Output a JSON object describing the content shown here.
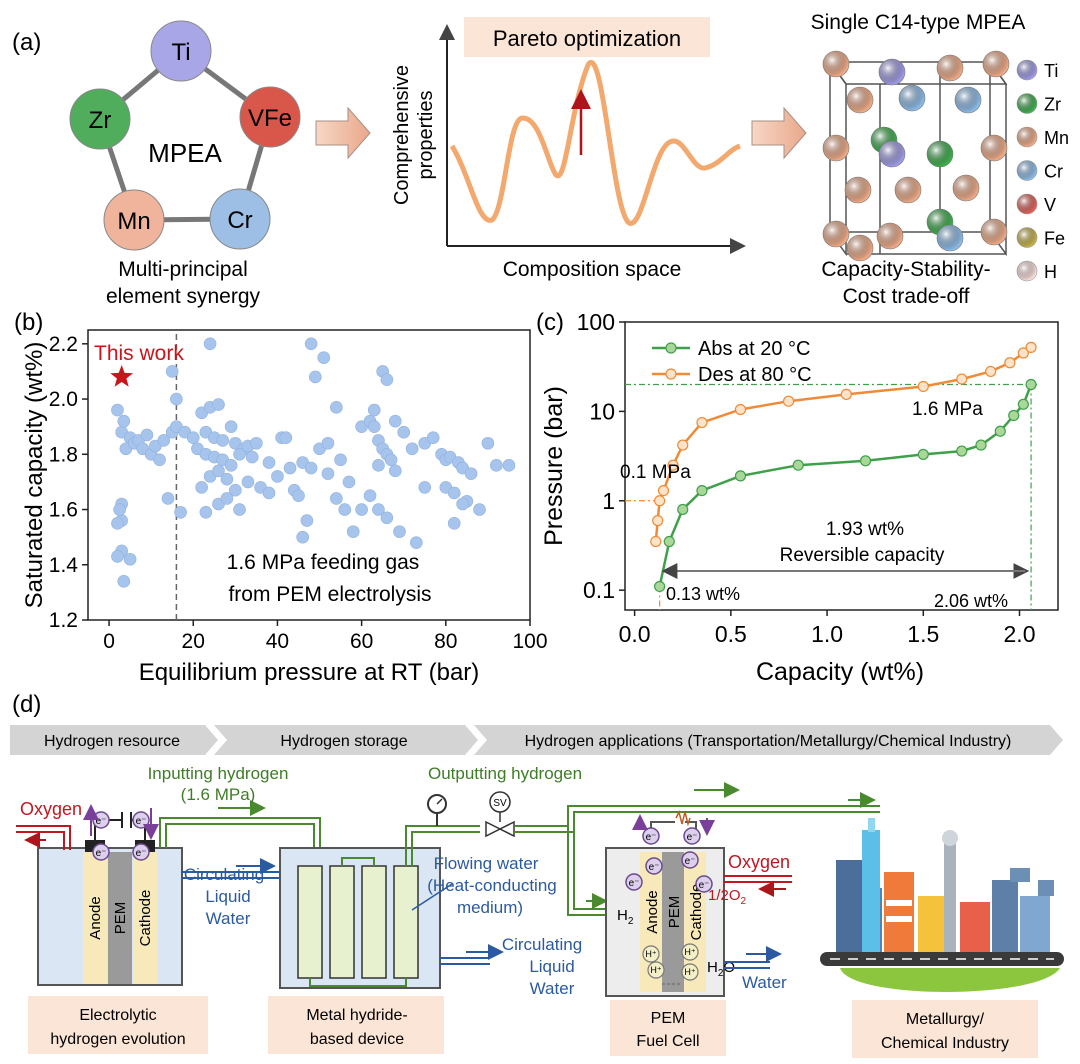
{
  "panel_a": {
    "label": "(a)",
    "ring_center": "MPEA",
    "elements": [
      {
        "symbol": "Ti",
        "color": "#a9a6e8"
      },
      {
        "symbol": "VFe",
        "color": "#d9574a"
      },
      {
        "symbol": "Cr",
        "color": "#9dbfe6"
      },
      {
        "symbol": "Mn",
        "color": "#efb49b"
      },
      {
        "symbol": "Zr",
        "color": "#4fad5b"
      }
    ],
    "ring_caption_1": "Multi-principal",
    "ring_caption_2": "element synergy",
    "pareto_title": "Pareto optimization",
    "pareto_ylabel_1": "Comprehensive",
    "pareto_ylabel_2": "properties",
    "pareto_xlabel": "Composition space",
    "crystal_title": "Single C14-type MPEA",
    "crystal_caption_1": "Capacity-Stability-",
    "crystal_caption_2": "Cost trade-off",
    "legend": [
      {
        "symbol": "Ti",
        "color": "#9f9be6"
      },
      {
        "symbol": "Zr",
        "color": "#3fae4e"
      },
      {
        "symbol": "Mn",
        "color": "#eeaa86"
      },
      {
        "symbol": "Cr",
        "color": "#8cbbe8"
      },
      {
        "symbol": "V",
        "color": "#e0625a"
      },
      {
        "symbol": "Fe",
        "color": "#c8b24a"
      },
      {
        "symbol": "H",
        "color": "#fbe0dc"
      }
    ]
  },
  "chart_data": [
    {
      "type": "scatter",
      "panel": "(b)",
      "xlabel": "Equilibrium pressure at RT (bar)",
      "ylabel": "Saturated capacity (wt%)",
      "xlim": [
        -5,
        100
      ],
      "ylim": [
        1.2,
        2.25
      ],
      "xticks": [
        0,
        20,
        40,
        60,
        80,
        100
      ],
      "yticks": [
        1.2,
        1.4,
        1.6,
        1.8,
        2.0,
        2.2
      ],
      "xtick_labels": [
        "0",
        "20",
        "40",
        "60",
        "80",
        "100"
      ],
      "ytick_labels": [
        "1.2",
        "1.4",
        "1.6",
        "1.8",
        "2.0",
        "2.2"
      ],
      "highlight": {
        "label": "This work",
        "x": 3,
        "y": 2.08,
        "color": "#c8151b"
      },
      "vline_x": 16,
      "annotation_1": "1.6 MPa feeding gas",
      "annotation_2": "from PEM electrolysis",
      "points": [
        [
          2,
          1.96
        ],
        [
          3,
          1.88
        ],
        [
          3.5,
          1.92
        ],
        [
          4,
          1.82
        ],
        [
          5,
          1.86
        ],
        [
          6,
          1.84
        ],
        [
          7,
          1.85
        ],
        [
          8,
          1.82
        ],
        [
          9,
          1.87
        ],
        [
          10,
          1.8
        ],
        [
          11,
          1.83
        ],
        [
          12,
          1.78
        ],
        [
          13,
          1.85
        ],
        [
          15,
          1.88
        ],
        [
          16,
          1.9
        ],
        [
          18,
          1.88
        ],
        [
          3,
          1.62
        ],
        [
          3,
          1.56
        ],
        [
          2,
          1.55
        ],
        [
          3,
          1.45
        ],
        [
          2,
          1.43
        ],
        [
          5,
          1.42
        ],
        [
          3.5,
          1.34
        ],
        [
          2.5,
          1.6
        ],
        [
          15,
          2.1
        ],
        [
          16,
          2.0
        ],
        [
          14,
          1.64
        ],
        [
          17,
          1.59
        ],
        [
          22,
          1.95
        ],
        [
          24,
          1.97
        ],
        [
          26,
          1.98
        ],
        [
          23,
          1.88
        ],
        [
          25,
          1.86
        ],
        [
          27,
          1.85
        ],
        [
          29,
          1.9
        ],
        [
          30,
          1.84
        ],
        [
          32,
          1.82
        ],
        [
          20,
          1.86
        ],
        [
          21,
          1.82
        ],
        [
          23,
          1.8
        ],
        [
          25,
          1.79
        ],
        [
          27,
          1.78
        ],
        [
          29,
          1.76
        ],
        [
          31,
          1.8
        ],
        [
          33,
          1.83
        ],
        [
          24,
          1.72
        ],
        [
          26,
          1.74
        ],
        [
          28,
          1.71
        ],
        [
          22,
          1.68
        ],
        [
          30,
          1.67
        ],
        [
          33,
          1.7
        ],
        [
          36,
          1.68
        ],
        [
          38,
          1.66
        ],
        [
          26,
          1.62
        ],
        [
          28,
          1.64
        ],
        [
          23,
          1.59
        ],
        [
          31,
          1.6
        ],
        [
          35,
          1.84
        ],
        [
          34,
          1.79
        ],
        [
          24,
          2.2
        ],
        [
          48,
          2.2
        ],
        [
          49,
          2.08
        ],
        [
          51,
          2.15
        ],
        [
          41,
          1.86
        ],
        [
          42,
          1.86
        ],
        [
          38,
          1.77
        ],
        [
          43,
          1.75
        ],
        [
          46,
          1.77
        ],
        [
          40,
          1.72
        ],
        [
          44,
          1.67
        ],
        [
          45,
          1.65
        ],
        [
          47,
          1.56
        ],
        [
          46,
          1.5
        ],
        [
          50,
          1.82
        ],
        [
          52,
          1.84
        ],
        [
          48,
          1.75
        ],
        [
          52,
          1.73
        ],
        [
          55,
          1.78
        ],
        [
          57,
          1.7
        ],
        [
          56,
          1.6
        ],
        [
          54,
          1.64
        ],
        [
          60,
          1.9
        ],
        [
          62,
          1.92
        ],
        [
          63,
          1.9
        ],
        [
          64,
          1.85
        ],
        [
          65,
          1.82
        ],
        [
          66,
          1.8
        ],
        [
          64,
          1.76
        ],
        [
          67,
          1.78
        ],
        [
          68,
          1.74
        ],
        [
          62,
          1.65
        ],
        [
          64,
          1.6
        ],
        [
          66,
          1.57
        ],
        [
          58,
          1.52
        ],
        [
          60,
          1.6
        ],
        [
          68,
          1.92
        ],
        [
          70,
          1.88
        ],
        [
          72,
          1.82
        ],
        [
          65,
          2.1
        ],
        [
          66,
          2.07
        ],
        [
          63,
          1.96
        ],
        [
          54,
          1.97
        ],
        [
          75,
          1.84
        ],
        [
          77,
          1.86
        ],
        [
          79,
          1.8
        ],
        [
          80,
          1.78
        ],
        [
          81,
          1.79
        ],
        [
          83,
          1.77
        ],
        [
          84,
          1.75
        ],
        [
          86,
          1.73
        ],
        [
          80,
          1.68
        ],
        [
          82,
          1.66
        ],
        [
          85,
          1.63
        ],
        [
          88,
          1.6
        ],
        [
          82,
          1.55
        ],
        [
          84,
          1.62
        ],
        [
          90,
          1.84
        ],
        [
          92,
          1.76
        ],
        [
          95,
          1.76
        ],
        [
          73,
          1.48
        ],
        [
          69,
          1.52
        ],
        [
          75,
          1.68
        ]
      ]
    },
    {
      "type": "line",
      "panel": "(c)",
      "xlabel": "Capacity (wt%)",
      "ylabel": "Pressure (bar)",
      "xscale": "linear",
      "yscale": "log",
      "xlim": [
        -0.05,
        2.2
      ],
      "ylim": [
        0.06,
        100
      ],
      "xticks": [
        0.0,
        0.5,
        1.0,
        1.5,
        2.0
      ],
      "xtick_labels": [
        "0.0",
        "0.5",
        "1.0",
        "1.5",
        "2.0"
      ],
      "yticks": [
        0.1,
        1,
        10,
        100
      ],
      "ytick_labels": [
        "0.1",
        "1",
        "10",
        "100"
      ],
      "series": [
        {
          "name": "Abs at 20 °C",
          "color": "#3fa04a",
          "x": [
            0.13,
            0.18,
            0.25,
            0.35,
            0.55,
            0.85,
            1.2,
            1.5,
            1.7,
            1.8,
            1.9,
            1.97,
            2.02,
            2.06
          ],
          "y": [
            0.11,
            0.35,
            0.8,
            1.3,
            1.9,
            2.5,
            2.8,
            3.3,
            3.6,
            4.2,
            6,
            9,
            12,
            20
          ]
        },
        {
          "name": "Des at 80 °C",
          "color": "#f08a36",
          "x": [
            0.11,
            0.12,
            0.13,
            0.15,
            0.2,
            0.25,
            0.35,
            0.55,
            0.8,
            1.1,
            1.5,
            1.7,
            1.85,
            1.95,
            2.02,
            2.06
          ],
          "y": [
            0.35,
            0.6,
            1.0,
            1.3,
            2.5,
            4.2,
            7.5,
            10.5,
            13,
            15.5,
            19,
            23,
            28,
            35,
            45,
            52
          ]
        }
      ],
      "annotations": [
        "0.1 MPa",
        "1.6 MPa",
        "1.93 wt%",
        "Reversible capacity",
        "0.13 wt%",
        "2.06 wt%"
      ]
    }
  ],
  "panel_d": {
    "label": "(d)",
    "banner": [
      "Hydrogen resource",
      "Hydrogen storage",
      "Hydrogen applications (Transportation/Metallurgy/Chemical Industry)"
    ],
    "oxygen_left": "Oxygen",
    "electron": "e⁻",
    "anode": "Anode",
    "pem": "PEM",
    "cathode": "Cathode",
    "input_h2_1": "Inputting hydrogen",
    "input_h2_2": "(1.6 MPa)",
    "circ_water_1": "Circulating",
    "circ_water_2": "Liquid",
    "circ_water_3": "Water",
    "output_h2": "Outputting hydrogen",
    "sv": "SV",
    "flowing_1": "Flowing water",
    "flowing_2": "(Heat-conducting",
    "flowing_3": "medium)",
    "oxygen_right": "Oxygen",
    "half_o2": "1/2O",
    "half_o2_sub": "2",
    "h2": "H",
    "h2_sub": "2",
    "h2o": "H",
    "h2o_sub": "2",
    "h2o_tail": "O",
    "hplus": "H⁺",
    "water": "Water",
    "box_electrolytic_1": "Electrolytic",
    "box_electrolytic_2": "hydrogen evolution",
    "box_hydride_1": "Metal hydride-",
    "box_hydride_2": "based device",
    "box_pem_1": "PEM",
    "box_pem_2": "Fuel Cell",
    "box_metal_1": "Metallurgy/",
    "box_metal_2": "Chemical Industry"
  }
}
